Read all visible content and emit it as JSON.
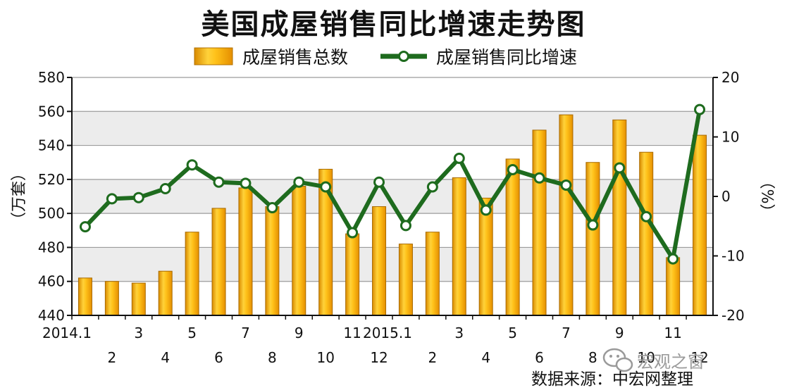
{
  "chart_data": {
    "type": "bar+line",
    "title": "美国成屋销售同比增速走势图",
    "legend": {
      "placement": "top",
      "items": [
        {
          "name": "成屋销售总数",
          "kind": "bar",
          "color": "#f5a800"
        },
        {
          "name": "成屋销售同比增速",
          "kind": "line",
          "color": "#1e6b1e"
        }
      ]
    },
    "x_labels": [
      "2014.1",
      "2",
      "3",
      "4",
      "5",
      "6",
      "7",
      "8",
      "9",
      "10",
      "11",
      "12",
      "2015.1",
      "2",
      "3",
      "4",
      "5",
      "6",
      "7",
      "8",
      "9",
      "10",
      "11",
      "12"
    ],
    "series": [
      {
        "name": "成屋销售总数",
        "axis": "left",
        "values": [
          462,
          460,
          459,
          466,
          489,
          503,
          515,
          504,
          516,
          526,
          488,
          504,
          482,
          489,
          521,
          509,
          532,
          549,
          558,
          530,
          555,
          536,
          474,
          546
        ]
      },
      {
        "name": "成屋销售同比增速",
        "axis": "right",
        "values": [
          -5.1,
          -0.4,
          -0.2,
          1.3,
          5.3,
          2.4,
          2.2,
          -1.9,
          2.4,
          1.6,
          -6.1,
          2.4,
          -4.9,
          1.6,
          6.4,
          -2.3,
          4.5,
          3.1,
          1.9,
          -4.8,
          4.8,
          -3.4,
          -10.5,
          14.6
        ]
      }
    ],
    "y_left": {
      "label": "（万套）",
      "min": 440,
      "max": 580,
      "ticks": [
        440,
        460,
        480,
        500,
        520,
        540,
        560,
        580
      ]
    },
    "y_right": {
      "label": "（%）",
      "min": -20,
      "max": 20,
      "ticks": [
        -20,
        -10,
        0,
        10,
        20
      ]
    },
    "grid": true
  },
  "source_text": "数据来源：中宏网整理",
  "watermark_text": "宏观之窗"
}
